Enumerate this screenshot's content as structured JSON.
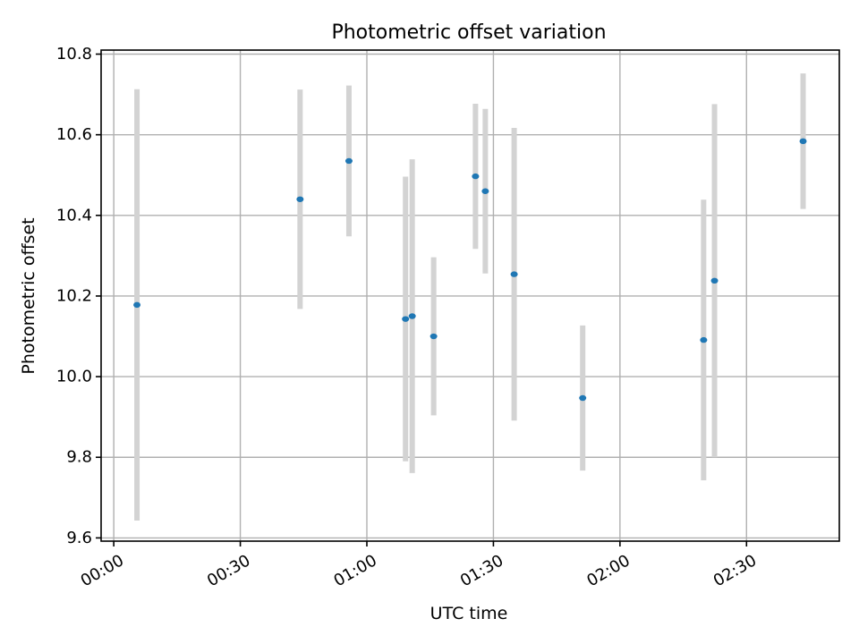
{
  "chart_data": {
    "type": "scatter",
    "title": "Photometric offset variation",
    "xlabel": "UTC time",
    "ylabel": "Photometric offset",
    "xlim": [
      "23:57:00",
      "02:52:00"
    ],
    "ylim": [
      9.592,
      10.81
    ],
    "x_ticks": [
      "00:00",
      "00:30",
      "01:00",
      "01:30",
      "02:00",
      "02:30"
    ],
    "y_ticks": [
      "9.6",
      "9.8",
      "10.0",
      "10.2",
      "10.4",
      "10.6",
      "10.8"
    ],
    "grid": true,
    "error_bar_color": "#d3d3d3",
    "marker_color": "#1f77b4",
    "points": [
      {
        "x": "00:05:30",
        "y": 10.178,
        "err": 0.535
      },
      {
        "x": "00:44:10",
        "y": 10.44,
        "err": 0.272
      },
      {
        "x": "00:55:45",
        "y": 10.535,
        "err": 0.187
      },
      {
        "x": "01:09:10",
        "y": 10.143,
        "err": 0.353
      },
      {
        "x": "01:10:45",
        "y": 10.15,
        "err": 0.389
      },
      {
        "x": "01:15:50",
        "y": 10.1,
        "err": 0.196
      },
      {
        "x": "01:25:45",
        "y": 10.497,
        "err": 0.18
      },
      {
        "x": "01:28:05",
        "y": 10.46,
        "err": 0.204
      },
      {
        "x": "01:34:55",
        "y": 10.254,
        "err": 0.363
      },
      {
        "x": "01:51:10",
        "y": 9.947,
        "err": 0.18
      },
      {
        "x": "02:19:50",
        "y": 10.091,
        "err": 0.348
      },
      {
        "x": "02:22:25",
        "y": 10.238,
        "err": 0.438
      },
      {
        "x": "02:43:25",
        "y": 10.584,
        "err": 0.168
      }
    ]
  }
}
